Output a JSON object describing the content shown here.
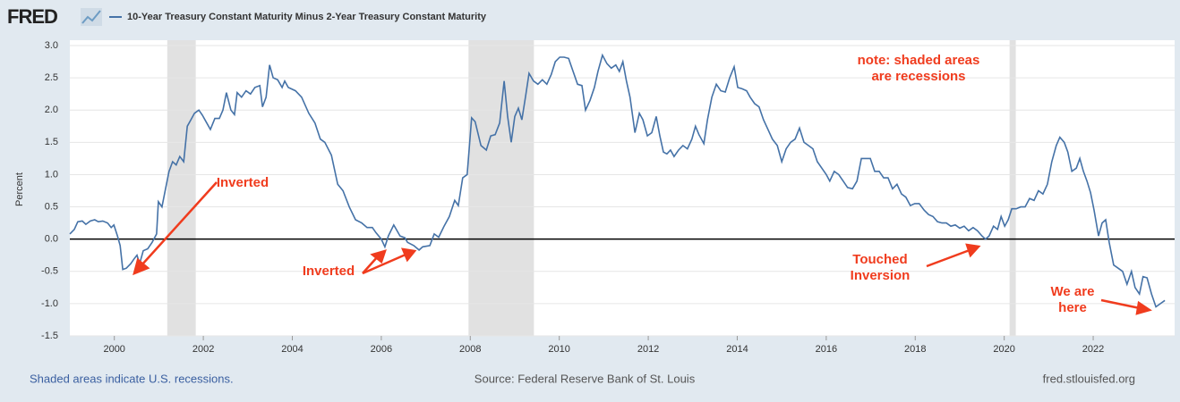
{
  "logo": "FRED",
  "footer": {
    "note": "Shaded areas indicate U.S. recessions.",
    "source": "Source: Federal Reserve Bank of St. Louis",
    "site": "fred.stlouisfed.org"
  },
  "chart_data": {
    "type": "line",
    "y_label": "Percent",
    "x": [
      1999.0,
      1999.1,
      1999.18,
      1999.28,
      1999.36,
      1999.46,
      1999.56,
      1999.64,
      1999.74,
      1999.85,
      1999.93,
      1999.99,
      2000.07,
      2000.13,
      2000.19,
      2000.27,
      2000.37,
      2000.45,
      2000.51,
      2000.57,
      2000.65,
      2000.75,
      2000.85,
      2000.95,
      2000.99,
      2001.07,
      2001.15,
      2001.23,
      2001.31,
      2001.39,
      2001.47,
      2001.56,
      2001.64,
      2001.72,
      2001.8,
      2001.9,
      2001.98,
      2002.06,
      2002.16,
      2002.26,
      2002.36,
      2002.44,
      2002.52,
      2002.62,
      2002.7,
      2002.76,
      2002.86,
      2002.96,
      2003.06,
      2003.16,
      2003.27,
      2003.33,
      2003.41,
      2003.49,
      2003.57,
      2003.67,
      2003.77,
      2003.83,
      2003.91,
      2004.07,
      2004.21,
      2004.37,
      2004.51,
      2004.63,
      2004.73,
      2004.88,
      2005.02,
      2005.14,
      2005.28,
      2005.42,
      2005.56,
      2005.68,
      2005.8,
      2005.88,
      2006.0,
      2006.08,
      2006.16,
      2006.28,
      2006.42,
      2006.53,
      2006.59,
      2006.73,
      2006.85,
      2006.93,
      2007.09,
      2007.19,
      2007.29,
      2007.41,
      2007.53,
      2007.65,
      2007.73,
      2007.83,
      2007.93,
      2008.03,
      2008.11,
      2008.24,
      2008.36,
      2008.46,
      2008.56,
      2008.66,
      2008.76,
      2008.84,
      2008.92,
      2009.0,
      2009.08,
      2009.16,
      2009.24,
      2009.32,
      2009.42,
      2009.52,
      2009.62,
      2009.72,
      2009.82,
      2009.91,
      2010.01,
      2010.11,
      2010.21,
      2010.31,
      2010.41,
      2010.51,
      2010.59,
      2010.69,
      2010.79,
      2010.87,
      2010.97,
      2011.07,
      2011.17,
      2011.27,
      2011.35,
      2011.43,
      2011.51,
      2011.59,
      2011.7,
      2011.8,
      2011.88,
      2011.98,
      2012.08,
      2012.18,
      2012.26,
      2012.34,
      2012.42,
      2012.5,
      2012.58,
      2012.68,
      2012.78,
      2012.88,
      2012.98,
      2013.06,
      2013.14,
      2013.25,
      2013.33,
      2013.43,
      2013.53,
      2013.63,
      2013.73,
      2013.83,
      2013.93,
      2014.01,
      2014.11,
      2014.21,
      2014.29,
      2014.39,
      2014.49,
      2014.59,
      2014.69,
      2014.79,
      2014.9,
      2015.0,
      2015.1,
      2015.2,
      2015.3,
      2015.4,
      2015.5,
      2015.6,
      2015.7,
      2015.8,
      2015.9,
      2016.0,
      2016.08,
      2016.18,
      2016.28,
      2016.38,
      2016.48,
      2016.59,
      2016.69,
      2016.79,
      2016.89,
      2016.99,
      2017.09,
      2017.19,
      2017.29,
      2017.39,
      2017.49,
      2017.59,
      2017.69,
      2017.79,
      2017.89,
      2017.99,
      2018.09,
      2018.2,
      2018.3,
      2018.4,
      2018.5,
      2018.6,
      2018.7,
      2018.8,
      2018.9,
      2019.0,
      2019.1,
      2019.2,
      2019.3,
      2019.4,
      2019.5,
      2019.58,
      2019.66,
      2019.76,
      2019.85,
      2019.93,
      2020.01,
      2020.09,
      2020.17,
      2020.27,
      2020.37,
      2020.47,
      2020.57,
      2020.67,
      2020.77,
      2020.87,
      2020.97,
      2021.07,
      2021.17,
      2021.25,
      2021.35,
      2021.43,
      2021.52,
      2021.62,
      2021.7,
      2021.78,
      2021.86,
      2021.94,
      2022.02,
      2022.12,
      2022.2,
      2022.28,
      2022.36,
      2022.46,
      2022.56,
      2022.66,
      2022.76,
      2022.86,
      2022.94,
      2023.04,
      2023.12,
      2023.21,
      2023.31,
      2023.41,
      2023.51,
      2023.61
    ],
    "series": [
      {
        "name": "10-Year Treasury Constant Maturity Minus 2-Year Treasury Constant Maturity",
        "color": "#4572a7",
        "values": [
          0.08,
          0.15,
          0.27,
          0.28,
          0.23,
          0.28,
          0.3,
          0.27,
          0.28,
          0.25,
          0.18,
          0.22,
          0.05,
          -0.1,
          -0.47,
          -0.45,
          -0.38,
          -0.3,
          -0.25,
          -0.38,
          -0.18,
          -0.15,
          -0.05,
          0.08,
          0.58,
          0.5,
          0.78,
          1.05,
          1.2,
          1.15,
          1.28,
          1.2,
          1.75,
          1.85,
          1.95,
          2.0,
          1.92,
          1.82,
          1.7,
          1.87,
          1.87,
          2.0,
          2.27,
          2.0,
          1.93,
          2.27,
          2.2,
          2.3,
          2.25,
          2.35,
          2.38,
          2.05,
          2.2,
          2.7,
          2.5,
          2.47,
          2.35,
          2.45,
          2.35,
          2.3,
          2.2,
          1.95,
          1.8,
          1.55,
          1.5,
          1.3,
          0.85,
          0.75,
          0.5,
          0.3,
          0.25,
          0.18,
          0.18,
          0.1,
          0.0,
          -0.12,
          0.05,
          0.22,
          0.05,
          0.02,
          -0.05,
          -0.1,
          -0.17,
          -0.12,
          -0.1,
          0.08,
          0.03,
          0.2,
          0.35,
          0.6,
          0.52,
          0.95,
          1.0,
          1.88,
          1.82,
          1.45,
          1.38,
          1.6,
          1.62,
          1.8,
          2.45,
          1.9,
          1.5,
          1.9,
          2.03,
          1.85,
          2.2,
          2.57,
          2.45,
          2.4,
          2.47,
          2.4,
          2.55,
          2.75,
          2.82,
          2.82,
          2.8,
          2.6,
          2.4,
          2.38,
          2.0,
          2.15,
          2.35,
          2.6,
          2.85,
          2.72,
          2.65,
          2.7,
          2.6,
          2.75,
          2.45,
          2.2,
          1.65,
          1.95,
          1.85,
          1.6,
          1.65,
          1.9,
          1.6,
          1.35,
          1.32,
          1.38,
          1.28,
          1.38,
          1.45,
          1.4,
          1.55,
          1.75,
          1.62,
          1.48,
          1.85,
          2.2,
          2.4,
          2.3,
          2.28,
          2.5,
          2.67,
          2.35,
          2.33,
          2.3,
          2.2,
          2.1,
          2.05,
          1.85,
          1.7,
          1.55,
          1.45,
          1.2,
          1.4,
          1.5,
          1.55,
          1.72,
          1.5,
          1.45,
          1.4,
          1.2,
          1.1,
          1.0,
          0.9,
          1.05,
          1.0,
          0.9,
          0.8,
          0.78,
          0.9,
          1.25,
          1.25,
          1.25,
          1.05,
          1.05,
          0.95,
          0.95,
          0.78,
          0.85,
          0.7,
          0.65,
          0.52,
          0.55,
          0.55,
          0.45,
          0.38,
          0.35,
          0.27,
          0.25,
          0.25,
          0.2,
          0.22,
          0.17,
          0.2,
          0.13,
          0.18,
          0.13,
          0.05,
          0.0,
          0.05,
          0.2,
          0.15,
          0.35,
          0.2,
          0.3,
          0.47,
          0.47,
          0.5,
          0.5,
          0.63,
          0.6,
          0.75,
          0.7,
          0.85,
          1.2,
          1.45,
          1.58,
          1.5,
          1.35,
          1.05,
          1.1,
          1.25,
          1.05,
          0.9,
          0.72,
          0.45,
          0.05,
          0.25,
          0.3,
          -0.05,
          -0.4,
          -0.45,
          -0.5,
          -0.7,
          -0.5,
          -0.75,
          -0.85,
          -0.58,
          -0.6,
          -0.85,
          -1.05,
          -1.0,
          -0.95
        ]
      }
    ],
    "recessions": [
      {
        "start": 2001.19,
        "end": 2001.83
      },
      {
        "start": 2007.96,
        "end": 2009.43
      },
      {
        "start": 2020.12,
        "end": 2020.26
      }
    ],
    "recession_color": "#e1e1e1",
    "xlim": [
      1999,
      2023.83
    ],
    "xticks": [
      2000,
      2002,
      2004,
      2006,
      2008,
      2010,
      2012,
      2014,
      2016,
      2018,
      2020,
      2022
    ],
    "ylim": [
      -1.5,
      3.0
    ],
    "yticks": [
      {
        "value": 3.0,
        "label": "3.0"
      },
      2.5,
      {
        "value": 2.0,
        "label": "2.0"
      },
      1.5,
      {
        "value": 1.0,
        "label": "1.0"
      },
      0.5,
      {
        "value": 0.0,
        "label": "0.0"
      },
      -0.5,
      {
        "value": -1.0,
        "label": "-1.0"
      },
      -1.5
    ],
    "grid": true,
    "annotations": [
      {
        "lines": [
          "Inverted"
        ]
      },
      {
        "lines": [
          "Inverted"
        ]
      },
      {
        "lines": [
          "Touched",
          "Inversion"
        ]
      },
      {
        "lines": [
          "We are",
          "here"
        ]
      },
      {
        "lines": [
          "note: shaded areas",
          "are recessions"
        ]
      }
    ],
    "annotation_color": "#f03c1e"
  }
}
